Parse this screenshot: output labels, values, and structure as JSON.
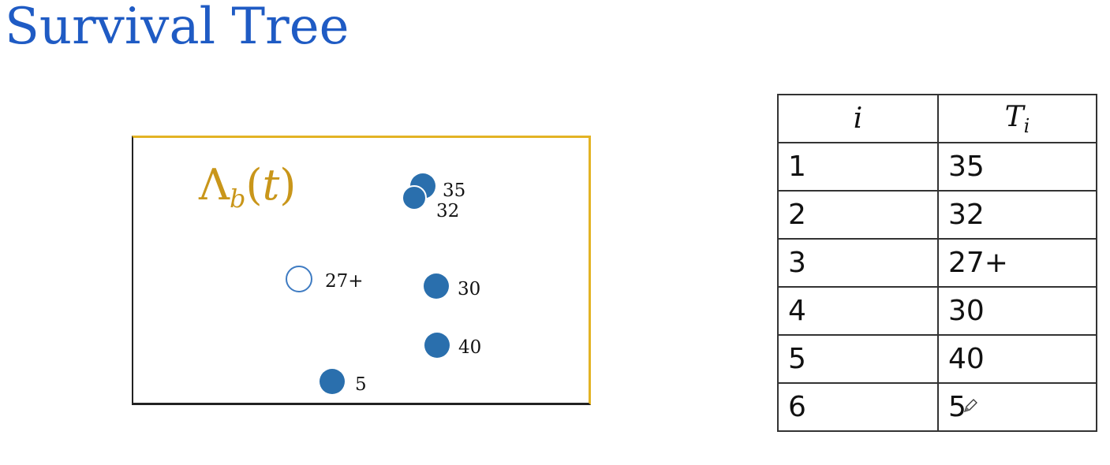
{
  "title": "Survival Tree",
  "plot": {
    "function_label": "Λ",
    "function_sub": "b",
    "function_arg_open": "(",
    "function_arg": "t",
    "function_arg_close": ")",
    "points": [
      {
        "label": "35",
        "censored": false
      },
      {
        "label": "32",
        "censored": false
      },
      {
        "label": "27+",
        "censored": true
      },
      {
        "label": "30",
        "censored": false
      },
      {
        "label": "40",
        "censored": false
      },
      {
        "label": "5",
        "censored": false
      }
    ],
    "colors": {
      "box_accent": "#e3b324",
      "point_fill": "#2a6fad",
      "label": "#c9961a",
      "title": "#1f5bc4"
    }
  },
  "table": {
    "headers": [
      "i",
      "T",
      "i"
    ],
    "rows": [
      [
        "1",
        "35"
      ],
      [
        "2",
        "32"
      ],
      [
        "3",
        "27+"
      ],
      [
        "4",
        "30"
      ],
      [
        "5",
        "40"
      ],
      [
        "6",
        "5"
      ]
    ]
  },
  "icons": {
    "cursor": "pen-cursor-icon"
  }
}
